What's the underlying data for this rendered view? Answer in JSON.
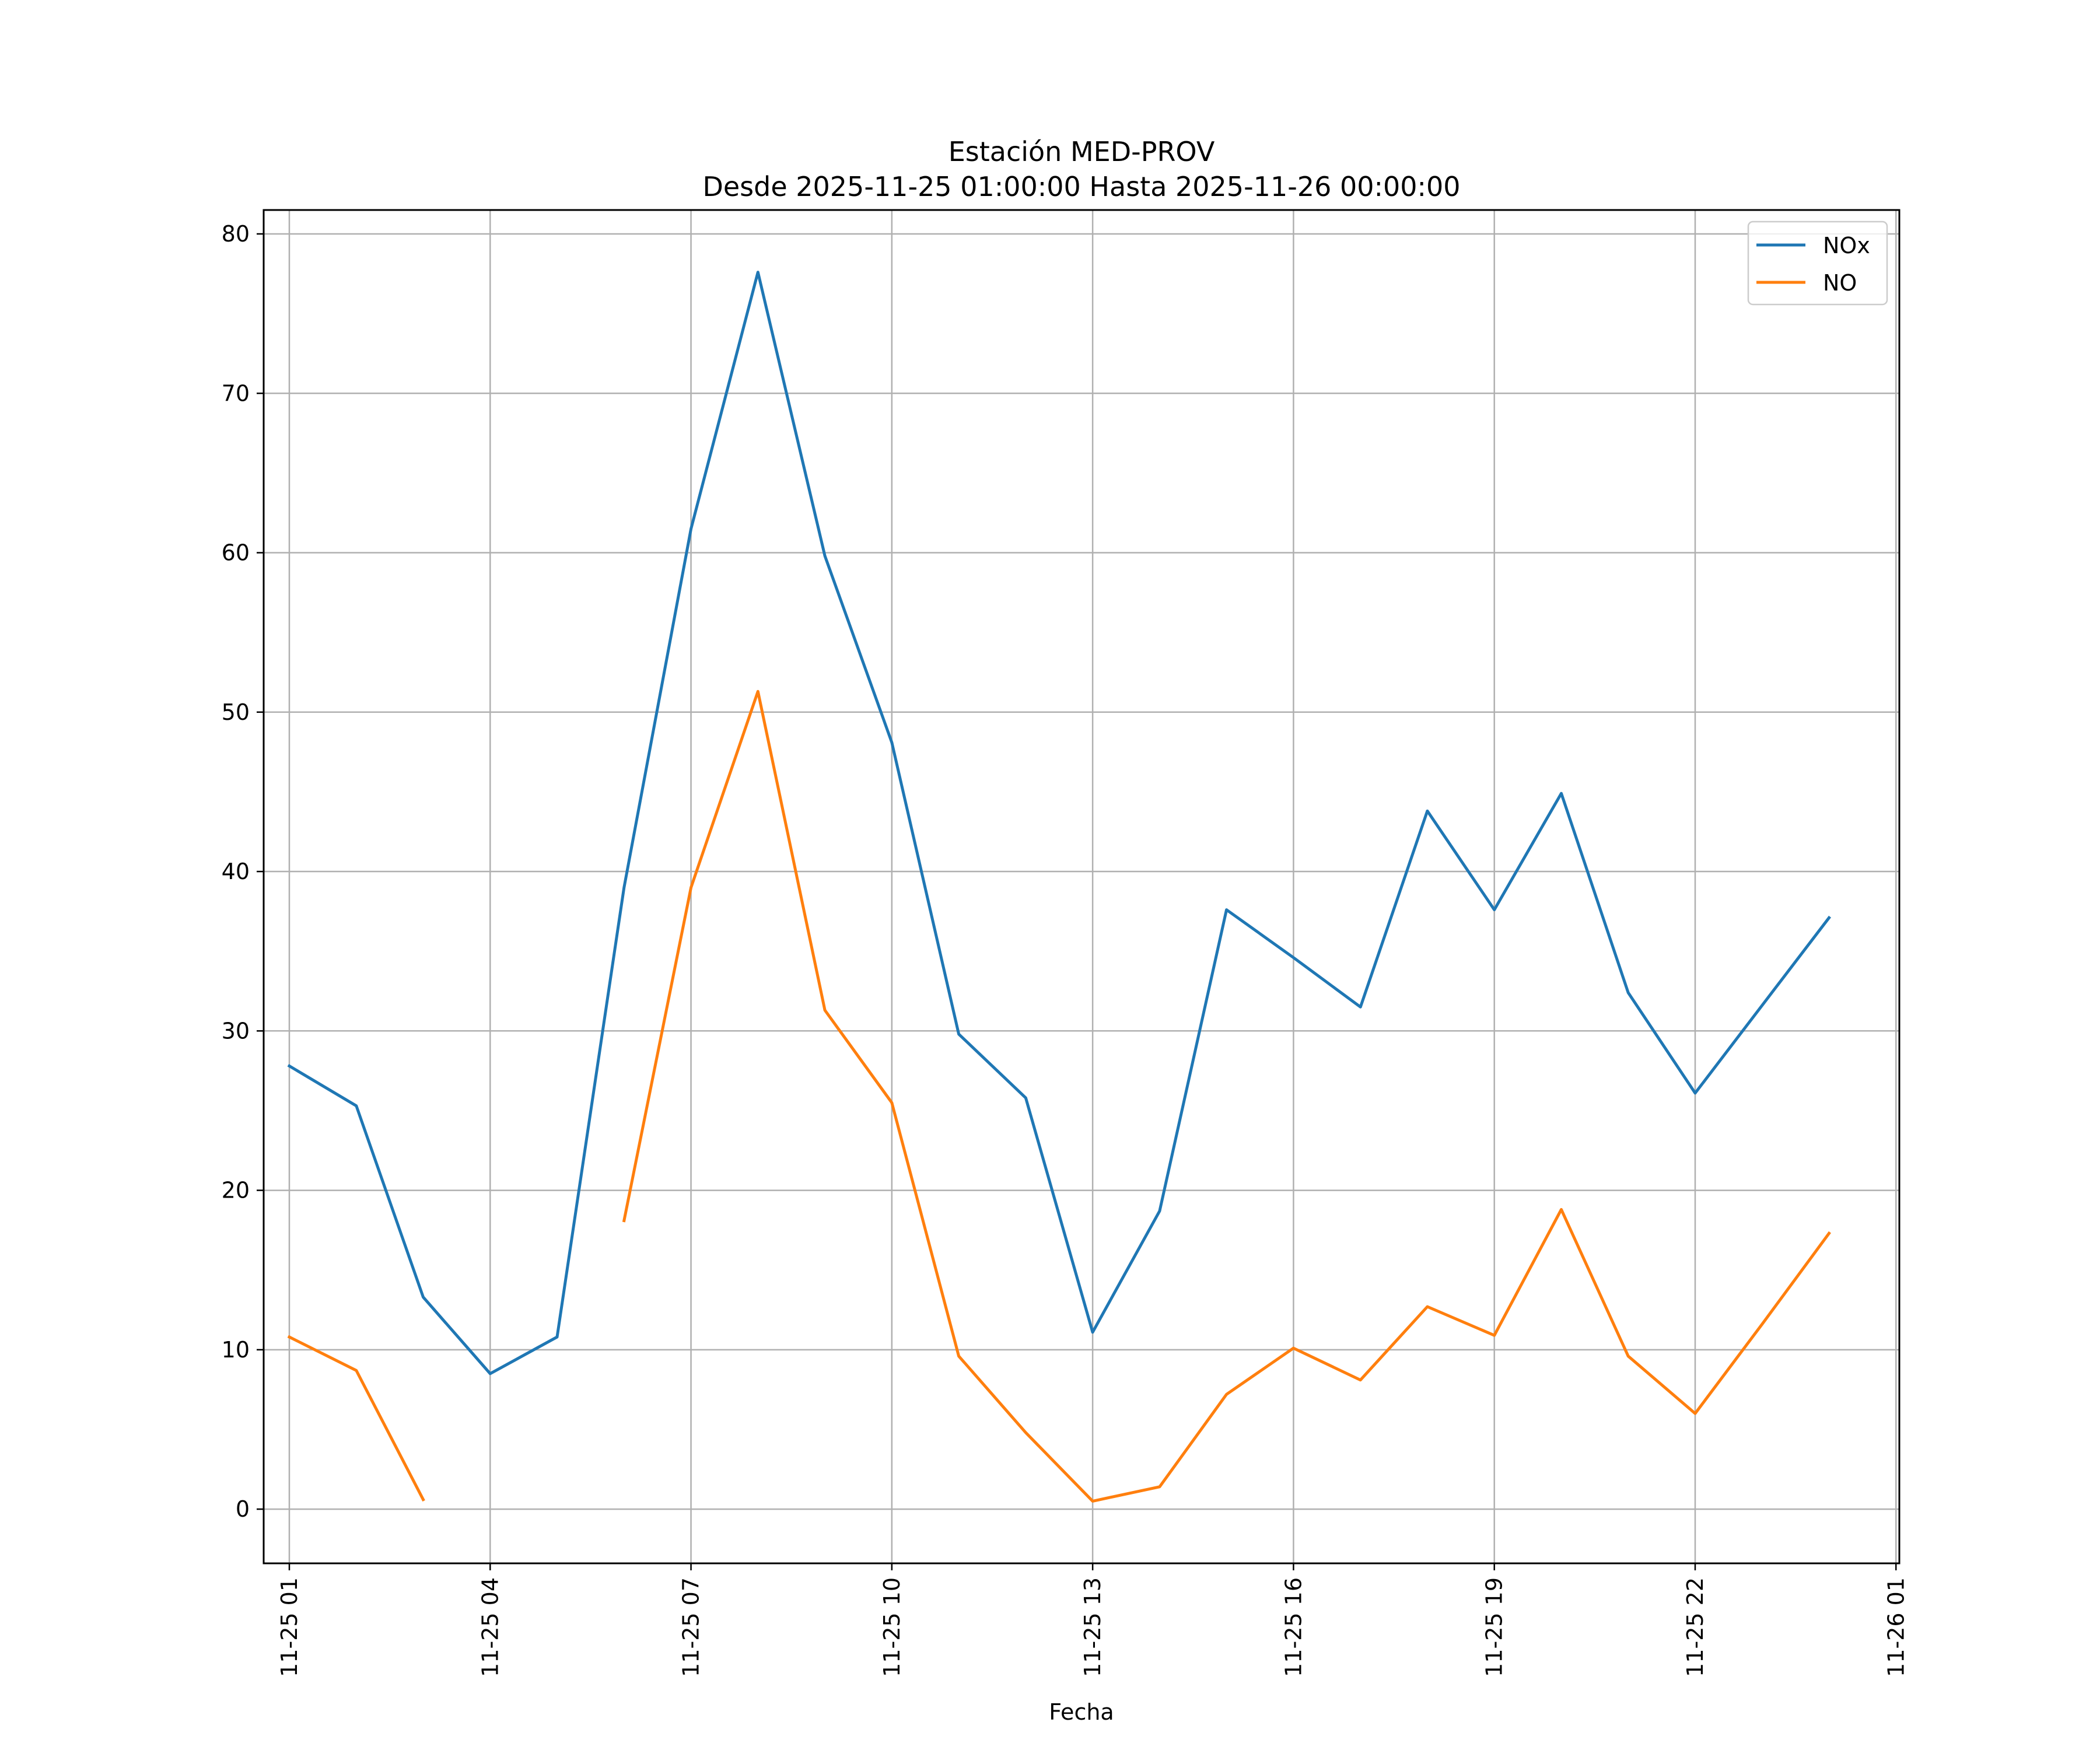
{
  "chart_data": {
    "type": "line",
    "title": "Estación MED-PROV",
    "subtitle": "Desde 2025-11-25 01:00:00 Hasta 2025-11-26 00:00:00",
    "xlabel": "Fecha",
    "ylabel": "",
    "xlim": [
      "2025-11-25 00:37",
      "2025-11-26 01:03"
    ],
    "ylim": [
      -3.4,
      81.5
    ],
    "x_ticks": [
      "11-25 01",
      "11-25 04",
      "11-25 07",
      "11-25 10",
      "11-25 13",
      "11-25 16",
      "11-25 19",
      "11-25 22",
      "11-26 01"
    ],
    "y_ticks": [
      0,
      10,
      20,
      30,
      40,
      50,
      60,
      70,
      80
    ],
    "grid": true,
    "legend_position": "top-right",
    "x": [
      "2025-11-25 01:00",
      "2025-11-25 02:00",
      "2025-11-25 03:00",
      "2025-11-25 04:00",
      "2025-11-25 05:00",
      "2025-11-25 06:00",
      "2025-11-25 07:00",
      "2025-11-25 08:00",
      "2025-11-25 09:00",
      "2025-11-25 10:00",
      "2025-11-25 11:00",
      "2025-11-25 12:00",
      "2025-11-25 13:00",
      "2025-11-25 14:00",
      "2025-11-25 15:00",
      "2025-11-25 16:00",
      "2025-11-25 17:00",
      "2025-11-25 18:00",
      "2025-11-25 19:00",
      "2025-11-25 20:00",
      "2025-11-25 21:00",
      "2025-11-25 22:00",
      "2025-11-25 23:00",
      "2025-11-26 00:00"
    ],
    "series": [
      {
        "name": "NOx",
        "color": "#1f77b4",
        "values": [
          27.8,
          25.3,
          13.3,
          8.5,
          10.8,
          39.0,
          61.5,
          77.6,
          59.8,
          48.1,
          29.8,
          25.8,
          11.1,
          18.7,
          37.6,
          34.6,
          31.5,
          43.8,
          37.6,
          44.9,
          32.4,
          26.1,
          31.6,
          37.1
        ]
      },
      {
        "name": "NO",
        "color": "#ff7f0e",
        "values": [
          10.8,
          8.7,
          0.6,
          null,
          null,
          18.1,
          39.0,
          51.3,
          31.3,
          25.5,
          9.6,
          4.8,
          0.5,
          1.4,
          7.2,
          10.1,
          8.1,
          12.7,
          10.9,
          18.8,
          9.6,
          6.0,
          11.6,
          17.3
        ]
      }
    ]
  }
}
